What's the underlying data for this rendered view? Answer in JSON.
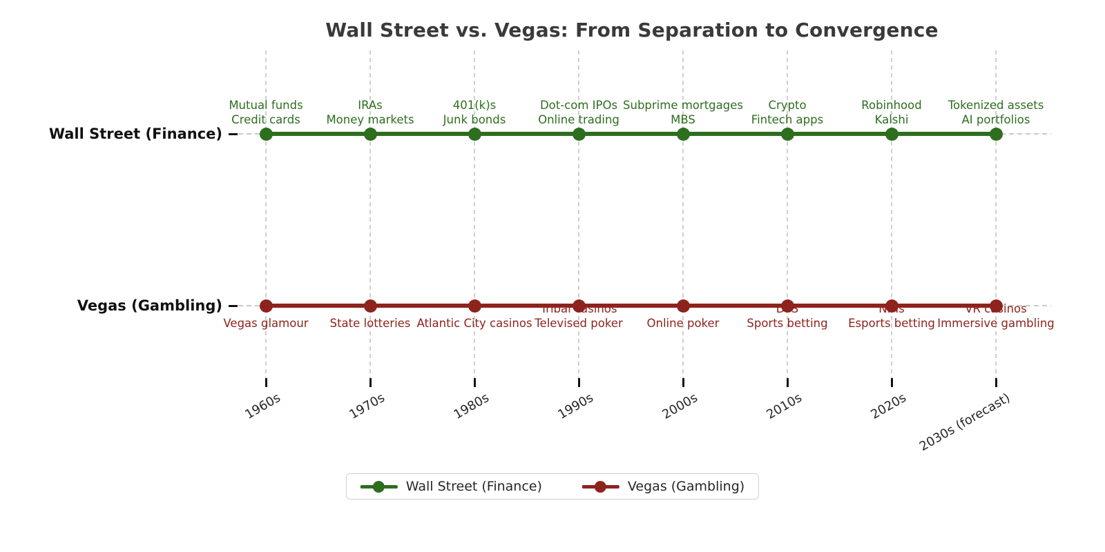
{
  "title": "Wall Street vs. Vegas: From Separation to Convergence",
  "colors": {
    "finance": "#2d6e1f",
    "gambling": "#8e231d",
    "grid": "#cfcfcf",
    "title_text": "#3a3a3a",
    "tick_text": "#262626"
  },
  "chart_data": {
    "type": "line",
    "subtype": "parallel-timelines",
    "title": "Wall Street vs. Vegas: From Separation to Convergence",
    "categories": [
      "1960s",
      "1970s",
      "1980s",
      "1990s",
      "2000s",
      "2010s",
      "2020s",
      "2030s (forecast)"
    ],
    "grid": "vertical-dashed",
    "legend_position": "bottom-center",
    "series": [
      {
        "name": "Wall Street (Finance)",
        "color": "#2d6e1f",
        "row": "top",
        "label_side": "above",
        "labels": [
          [
            "Mutual funds",
            "Credit cards"
          ],
          [
            "IRAs",
            "Money markets"
          ],
          [
            "401(k)s",
            "Junk bonds"
          ],
          [
            "Dot-com IPOs",
            "Online trading"
          ],
          [
            "Subprime mortgages",
            "MBS"
          ],
          [
            "Crypto",
            "Fintech apps"
          ],
          [
            "Robinhood",
            "Kalshi"
          ],
          [
            "Tokenized assets",
            "AI portfolios"
          ]
        ]
      },
      {
        "name": "Vegas (Gambling)",
        "color": "#8e231d",
        "row": "bottom",
        "label_side": "below",
        "labels": [
          [
            "",
            "Vegas glamour"
          ],
          [
            "",
            "State lotteries"
          ],
          [
            "",
            "Atlantic City casinos"
          ],
          [
            "Tribal casinos",
            "Televised poker"
          ],
          [
            "",
            "Online poker"
          ],
          [
            "DFS",
            "Sports betting"
          ],
          [
            "NFTs",
            "Esports betting"
          ],
          [
            "VR casinos",
            "Immersive gambling"
          ]
        ]
      }
    ],
    "legend": [
      "Wall Street (Finance)",
      "Vegas (Gambling)"
    ]
  }
}
